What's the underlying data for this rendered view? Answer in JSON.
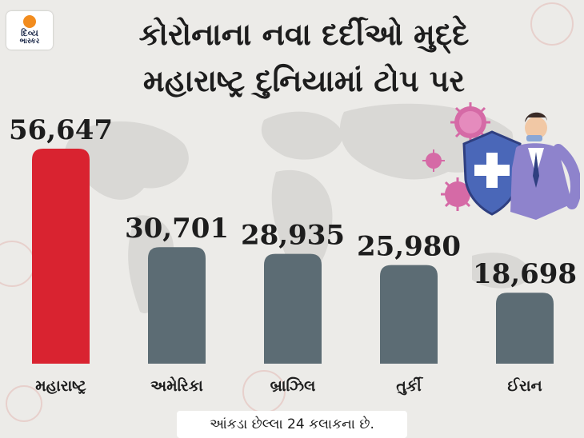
{
  "brand": {
    "line1": "દિવ્ય",
    "line2": "ભાસ્કર",
    "color": "#f28c1e"
  },
  "title": {
    "line1": "કોરોનાના નવા દર્દીઓ મુદ્દે",
    "line2": "મહારાષ્ટ્ર દુનિયામાં ટોપ પર"
  },
  "chart_data": {
    "type": "bar",
    "title": "કોરોનાના નવા દર્દીઓ મુદ્દે મહારાષ્ટ્ર દુનિયામાં ટોપ પર",
    "categories": [
      "મહારાષ્ટ્ર",
      "અમેરિકા",
      "બ્રાઝિલ",
      "તુર્કી",
      "ઈરાન"
    ],
    "values": [
      56647,
      30701,
      28935,
      25980,
      18698
    ],
    "value_labels": [
      "56,647",
      "30,701",
      "28,935",
      "25,980",
      "18,698"
    ],
    "bar_colors": [
      "#d92330",
      "#5c6c74",
      "#5c6c74",
      "#5c6c74",
      "#5c6c74"
    ],
    "ylim": [
      0,
      60000
    ],
    "grid": false,
    "legend": "none"
  },
  "footnote": "આંકડા છેલ્લા 24 કલાકના છે.",
  "illustration": {
    "icons": [
      "virus-icon",
      "shield-cross-icon",
      "doctor-figure-icon"
    ]
  }
}
